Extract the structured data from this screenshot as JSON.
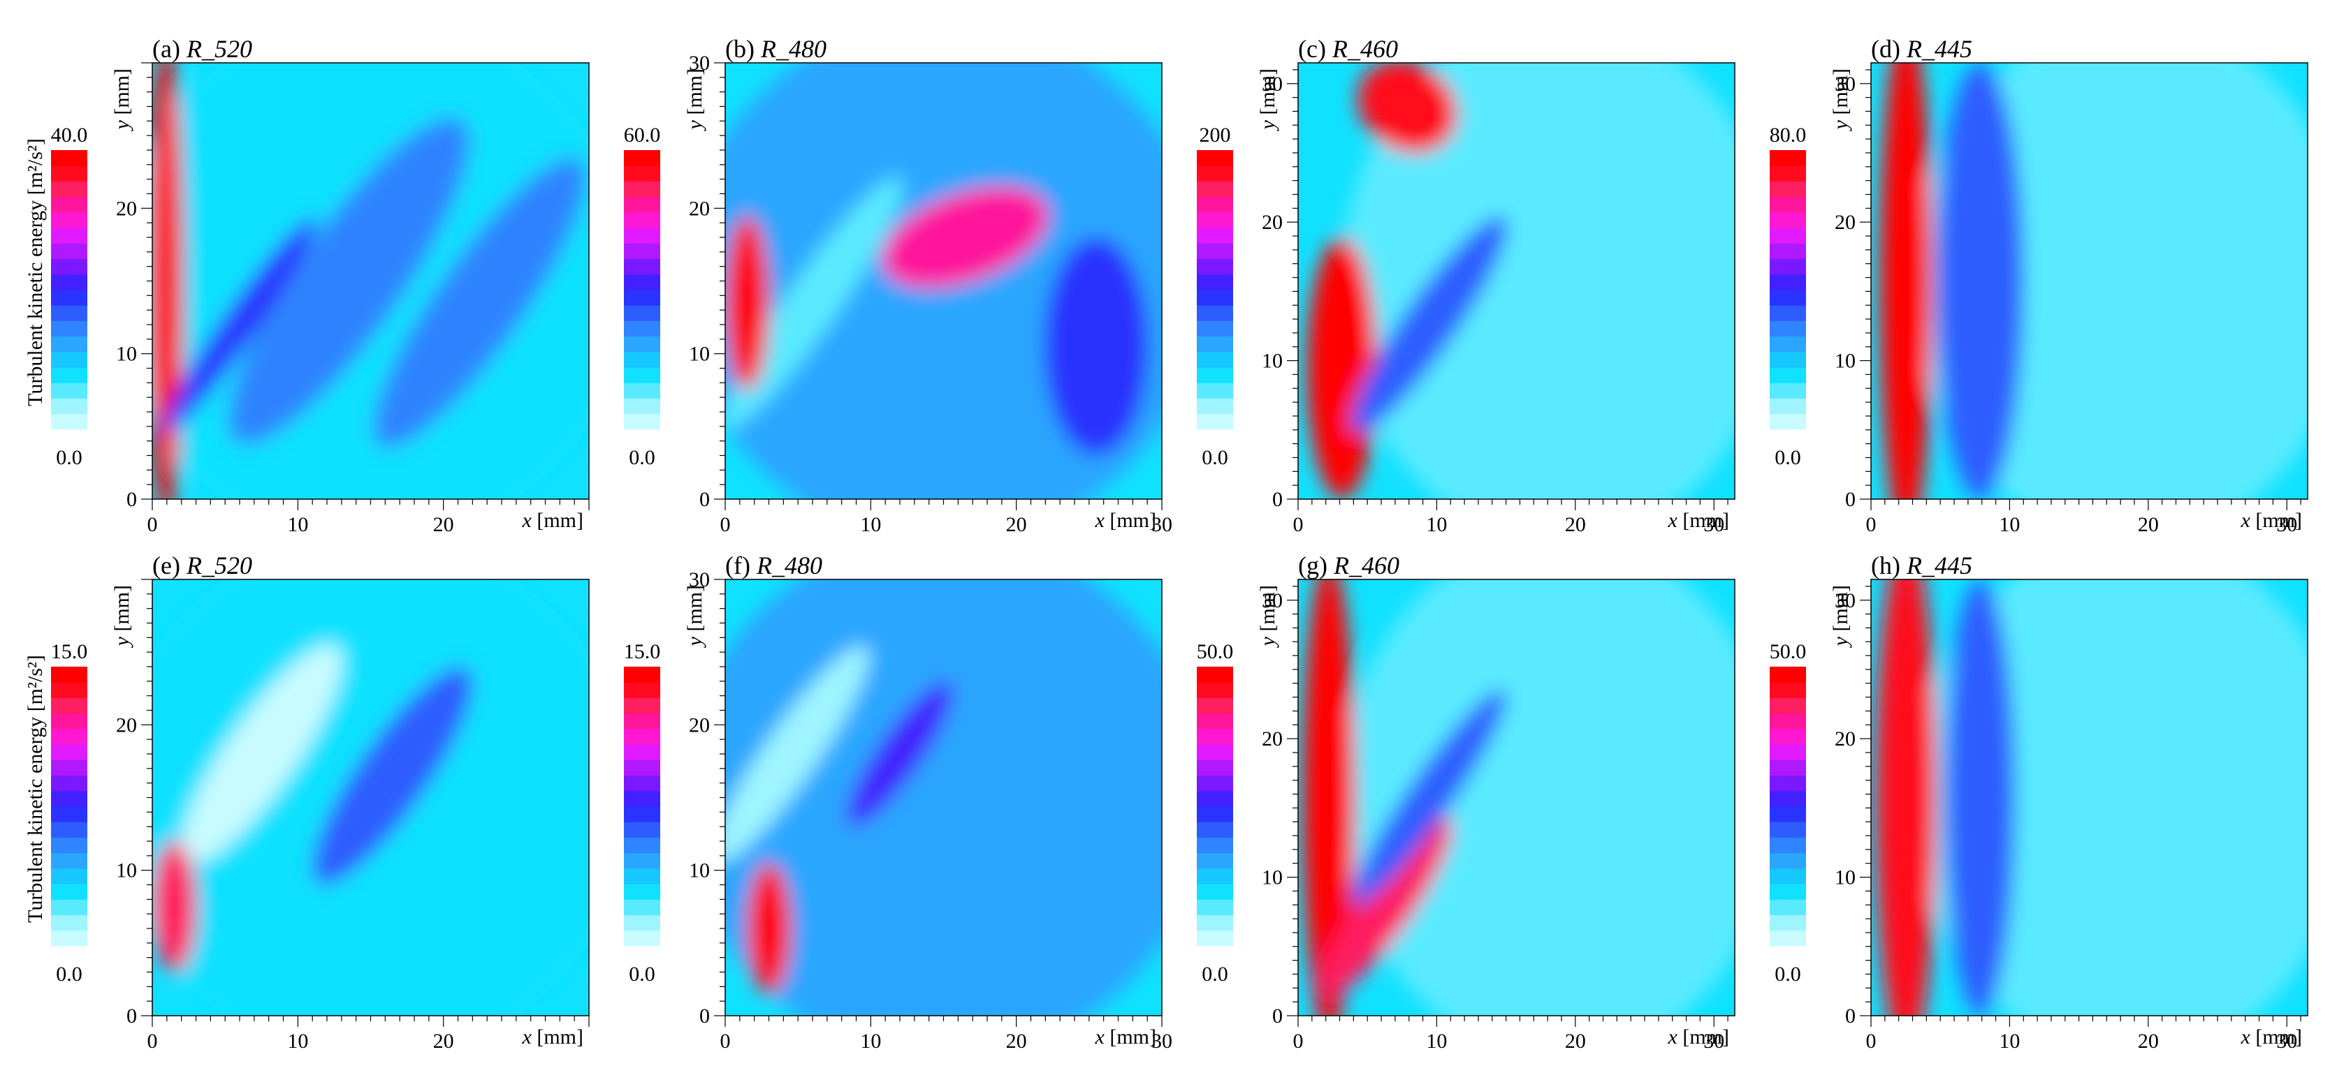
{
  "figure": {
    "ylabel_left": "Turbulent kinetic energy [m²/s²]",
    "colors": [
      "#c8fbff",
      "#9ff5ff",
      "#5aeaff",
      "#10e1ff",
      "#17c7ff",
      "#2aa6ff",
      "#2f84ff",
      "#2d5dff",
      "#2a33ff",
      "#4220ff",
      "#7a18ff",
      "#b019ff",
      "#e21aff",
      "#ff18d2",
      "#ff169c",
      "#ff1e60",
      "#ff0a1e",
      "#ff0000"
    ]
  },
  "chart_data": [
    {
      "type": "heatmap",
      "title": "(a) R_520",
      "panel_label": "(a)",
      "series_label": "R_520",
      "xlabel": "x [mm]",
      "ylabel": "y [mm]",
      "xlim": [
        0,
        30
      ],
      "ylim": [
        0,
        30
      ],
      "xticks": [
        "0",
        "10",
        "20"
      ],
      "yticks": [
        "0",
        "10",
        "20"
      ],
      "colorbar": {
        "min": "0.0",
        "max": "40.0"
      }
    },
    {
      "type": "heatmap",
      "title": "(b) R_480",
      "panel_label": "(b)",
      "series_label": "R_480",
      "xlabel": "x [mm]",
      "ylabel": "y [mm]",
      "xlim": [
        0,
        30
      ],
      "ylim": [
        0,
        30
      ],
      "xticks": [
        "0",
        "10",
        "20",
        "30"
      ],
      "yticks": [
        "0",
        "10",
        "20",
        "30"
      ],
      "colorbar": {
        "min": "0.0",
        "max": "60.0"
      }
    },
    {
      "type": "heatmap",
      "title": "(c) R_460",
      "panel_label": "(c)",
      "series_label": "R_460",
      "xlabel": "x [mm]",
      "ylabel": "y [mm]",
      "xlim": [
        0,
        31.5
      ],
      "ylim": [
        0,
        31.5
      ],
      "xticks": [
        "0",
        "10",
        "20",
        "30"
      ],
      "yticks": [
        "0",
        "10",
        "20",
        "30"
      ],
      "colorbar": {
        "min": "0.0",
        "max": "200"
      }
    },
    {
      "type": "heatmap",
      "title": "(d) R_445",
      "panel_label": "(d)",
      "series_label": "R_445",
      "xlabel": "x [mm]",
      "ylabel": "y [mm]",
      "xlim": [
        0,
        31.5
      ],
      "ylim": [
        0,
        31.5
      ],
      "xticks": [
        "0",
        "10",
        "20",
        "30"
      ],
      "yticks": [
        "0",
        "10",
        "20",
        "30"
      ],
      "colorbar": {
        "min": "0.0",
        "max": "80.0"
      }
    },
    {
      "type": "heatmap",
      "title": "(e) R_520",
      "panel_label": "(e)",
      "series_label": "R_520",
      "xlabel": "x [mm]",
      "ylabel": "y [mm]",
      "xlim": [
        0,
        30
      ],
      "ylim": [
        0,
        30
      ],
      "xticks": [
        "0",
        "10",
        "20"
      ],
      "yticks": [
        "0",
        "10",
        "20"
      ],
      "colorbar": {
        "min": "0.0",
        "max": "15.0"
      }
    },
    {
      "type": "heatmap",
      "title": "(f) R_480",
      "panel_label": "(f)",
      "series_label": "R_480",
      "xlabel": "x [mm]",
      "ylabel": "y [mm]",
      "xlim": [
        0,
        30
      ],
      "ylim": [
        0,
        30
      ],
      "xticks": [
        "0",
        "10",
        "20",
        "30"
      ],
      "yticks": [
        "0",
        "10",
        "20",
        "30"
      ],
      "colorbar": {
        "min": "0.0",
        "max": "15.0"
      }
    },
    {
      "type": "heatmap",
      "title": "(g) R_460",
      "panel_label": "(g)",
      "series_label": "R_460",
      "xlabel": "x [mm]",
      "ylabel": "y [mm]",
      "xlim": [
        0,
        31.5
      ],
      "ylim": [
        0,
        31.5
      ],
      "xticks": [
        "0",
        "10",
        "20",
        "30"
      ],
      "yticks": [
        "0",
        "10",
        "20",
        "30"
      ],
      "colorbar": {
        "min": "0.0",
        "max": "50.0"
      }
    },
    {
      "type": "heatmap",
      "title": "(h) R_445",
      "panel_label": "(h)",
      "series_label": "R_445",
      "xlabel": "x [mm]",
      "ylabel": "y [mm]",
      "xlim": [
        0,
        31.5
      ],
      "ylim": [
        0,
        31.5
      ],
      "xticks": [
        "0",
        "10",
        "20",
        "30"
      ],
      "yticks": [
        "0",
        "10",
        "20",
        "30"
      ],
      "colorbar": {
        "min": "0.0",
        "max": "50.0"
      }
    }
  ]
}
